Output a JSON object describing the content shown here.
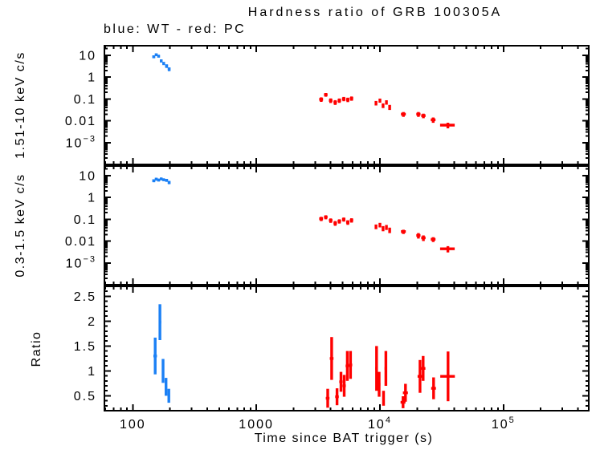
{
  "colors": {
    "wt_blue": "#1b80f5",
    "pc_red": "#ff0000",
    "frame": "#000000",
    "background": "#ffffff"
  },
  "chart_data": {
    "type": "scatter",
    "title": "Hardness ratio of GRB 100305A",
    "subtitle": "blue: WT - red: PC",
    "xlabel": "Time since BAT trigger (s)",
    "x_scale": "log",
    "xlim": [
      59,
      490000
    ],
    "xticks": [
      {
        "v": 100,
        "label": "100"
      },
      {
        "v": 1000,
        "label": "1000"
      },
      {
        "v": 10000,
        "label": "10",
        "exp": "4"
      },
      {
        "v": 100000,
        "label": "10",
        "exp": "5"
      }
    ],
    "legend": {
      "WT": "blue",
      "PC": "red"
    },
    "point_format": [
      "time_s",
      "time_err_s",
      "value",
      "value_err"
    ],
    "panels": [
      {
        "id": "hard",
        "ylabel": "1.51-10 keV c/s",
        "y_scale": "log",
        "ylim": [
          0.0001,
          27
        ],
        "yticks": [
          {
            "v": 10,
            "label": "10"
          },
          {
            "v": 1,
            "label": "1"
          },
          {
            "v": 0.1,
            "label": "0.1"
          },
          {
            "v": 0.01,
            "label": "0.01"
          },
          {
            "v": 0.001,
            "label": "10",
            "exp": "−3"
          }
        ],
        "series": [
          {
            "name": "WT",
            "color_key": "wt_blue",
            "points": [
              [
                148,
                4,
                8.5,
                1.3
              ],
              [
                155,
                4,
                10.5,
                1.5
              ],
              [
                162,
                4,
                9,
                1.3
              ],
              [
                170,
                4,
                5.5,
                0.9
              ],
              [
                178,
                4,
                4.2,
                0.7
              ],
              [
                188,
                5,
                3.2,
                0.6
              ],
              [
                197,
                5,
                2.3,
                0.45
              ]
            ]
          },
          {
            "name": "PC",
            "color_key": "pc_red",
            "points": [
              [
                3350,
                120,
                0.095,
                0.022
              ],
              [
                3650,
                120,
                0.155,
                0.03
              ],
              [
                4000,
                130,
                0.085,
                0.02
              ],
              [
                4350,
                140,
                0.07,
                0.017
              ],
              [
                4700,
                150,
                0.085,
                0.019
              ],
              [
                5100,
                160,
                0.1,
                0.022
              ],
              [
                5500,
                170,
                0.092,
                0.021
              ],
              [
                5900,
                180,
                0.105,
                0.023
              ],
              [
                9300,
                200,
                0.065,
                0.015
              ],
              [
                10000,
                220,
                0.085,
                0.018
              ],
              [
                10600,
                230,
                0.05,
                0.012
              ],
              [
                11300,
                240,
                0.07,
                0.016
              ],
              [
                12000,
                260,
                0.042,
                0.011
              ],
              [
                15500,
                700,
                0.02,
                0.005
              ],
              [
                20500,
                800,
                0.02,
                0.005
              ],
              [
                22500,
                900,
                0.017,
                0.004
              ],
              [
                27000,
                1200,
                0.011,
                0.003
              ],
              [
                35500,
                4800,
                0.0063,
                0.0018
              ]
            ]
          }
        ]
      },
      {
        "id": "soft",
        "ylabel": "0.3-1.5 keV c/s",
        "y_scale": "log",
        "ylim": [
          0.0001,
          27
        ],
        "yticks": [
          {
            "v": 10,
            "label": "10"
          },
          {
            "v": 1,
            "label": "1"
          },
          {
            "v": 0.1,
            "label": "0.1"
          },
          {
            "v": 0.01,
            "label": "0.01"
          },
          {
            "v": 0.001,
            "label": "10",
            "exp": "−3"
          }
        ],
        "series": [
          {
            "name": "WT",
            "color_key": "wt_blue",
            "points": [
              [
                148,
                4,
                5.8,
                0.9
              ],
              [
                155,
                4,
                6.8,
                1
              ],
              [
                162,
                4,
                6.2,
                0.9
              ],
              [
                170,
                4,
                7,
                1
              ],
              [
                178,
                4,
                6.4,
                0.9
              ],
              [
                188,
                5,
                6,
                0.9
              ],
              [
                197,
                5,
                4.8,
                0.8
              ]
            ]
          },
          {
            "name": "PC",
            "color_key": "pc_red",
            "points": [
              [
                3350,
                120,
                0.105,
                0.023
              ],
              [
                3650,
                120,
                0.125,
                0.026
              ],
              [
                4000,
                130,
                0.088,
                0.02
              ],
              [
                4350,
                140,
                0.066,
                0.016
              ],
              [
                4700,
                150,
                0.081,
                0.018
              ],
              [
                5100,
                160,
                0.098,
                0.021
              ],
              [
                5500,
                170,
                0.072,
                0.017
              ],
              [
                5900,
                180,
                0.09,
                0.02
              ],
              [
                9300,
                200,
                0.046,
                0.011
              ],
              [
                10000,
                220,
                0.055,
                0.013
              ],
              [
                10600,
                230,
                0.038,
                0.01
              ],
              [
                11300,
                240,
                0.043,
                0.011
              ],
              [
                12000,
                260,
                0.032,
                0.009
              ],
              [
                15500,
                700,
                0.027,
                0.006
              ],
              [
                20500,
                800,
                0.018,
                0.005
              ],
              [
                22500,
                900,
                0.014,
                0.004
              ],
              [
                27000,
                1200,
                0.012,
                0.003
              ],
              [
                35500,
                4800,
                0.0044,
                0.0014
              ]
            ]
          }
        ]
      },
      {
        "id": "ratio",
        "ylabel": "Ratio",
        "y_scale": "linear",
        "ylim": [
          0.2,
          2.7
        ],
        "ytick_step": {
          "major": 0.5,
          "minor": 0.1
        },
        "yticks": [
          {
            "v": 2.5,
            "label": "2.5"
          },
          {
            "v": 2,
            "label": "2"
          },
          {
            "v": 1.5,
            "label": "1.5"
          },
          {
            "v": 1,
            "label": "1"
          },
          {
            "v": 0.5,
            "label": "0.5"
          }
        ],
        "series": [
          {
            "name": "WT",
            "color_key": "wt_blue",
            "points": [
              [
                152,
                5,
                1.3,
                0.37
              ],
              [
                166,
                4,
                1.98,
                0.36
              ],
              [
                176,
                4,
                1,
                0.24
              ],
              [
                186,
                4,
                0.68,
                0.18
              ],
              [
                196,
                4,
                0.5,
                0.14
              ]
            ]
          },
          {
            "name": "PC",
            "color_key": "pc_red",
            "points": [
              [
                3780,
                130,
                0.45,
                0.19
              ],
              [
                4070,
                140,
                1.25,
                0.43
              ],
              [
                4500,
                150,
                0.48,
                0.17
              ],
              [
                4840,
                150,
                0.78,
                0.2
              ],
              [
                5140,
                160,
                0.7,
                0.22
              ],
              [
                5450,
                170,
                1.1,
                0.3
              ],
              [
                5790,
                180,
                1.12,
                0.28
              ],
              [
                9400,
                220,
                1.05,
                0.45
              ],
              [
                9860,
                230,
                0.73,
                0.25
              ],
              [
                10700,
                240,
                0.45,
                0.15
              ],
              [
                11170,
                250,
                1.05,
                0.35
              ],
              [
                15400,
                700,
                0.37,
                0.12
              ],
              [
                16100,
                750,
                0.56,
                0.18
              ],
              [
                21100,
                900,
                0.89,
                0.33
              ],
              [
                22400,
                950,
                1.05,
                0.25
              ],
              [
                27200,
                1200,
                0.65,
                0.22
              ],
              [
                35600,
                4800,
                0.89,
                0.5
              ]
            ]
          }
        ]
      }
    ]
  }
}
